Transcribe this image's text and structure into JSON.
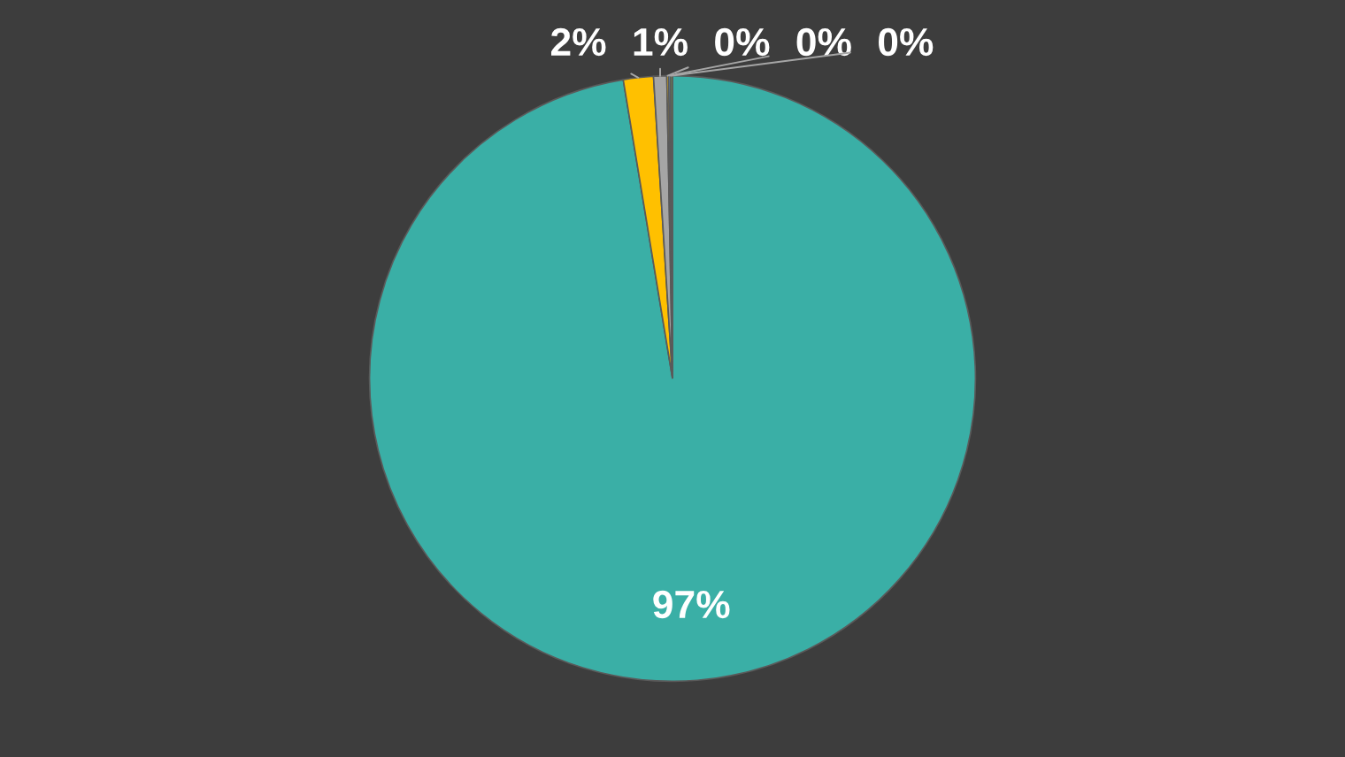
{
  "chart_data": {
    "type": "pie",
    "categories": [
      null,
      null,
      null,
      null,
      null,
      null
    ],
    "values": [
      97.4,
      1.6,
      0.7,
      0.1,
      0.1,
      0.1
    ],
    "colors": [
      "#3aafa6",
      "#ffc000",
      "#a5a5a5",
      "#ffc000",
      "#5b9bd5",
      "#70ad47"
    ],
    "value_labels": [
      "97%",
      "2%",
      "1%",
      "0%",
      "0%",
      "0%"
    ]
  }
}
